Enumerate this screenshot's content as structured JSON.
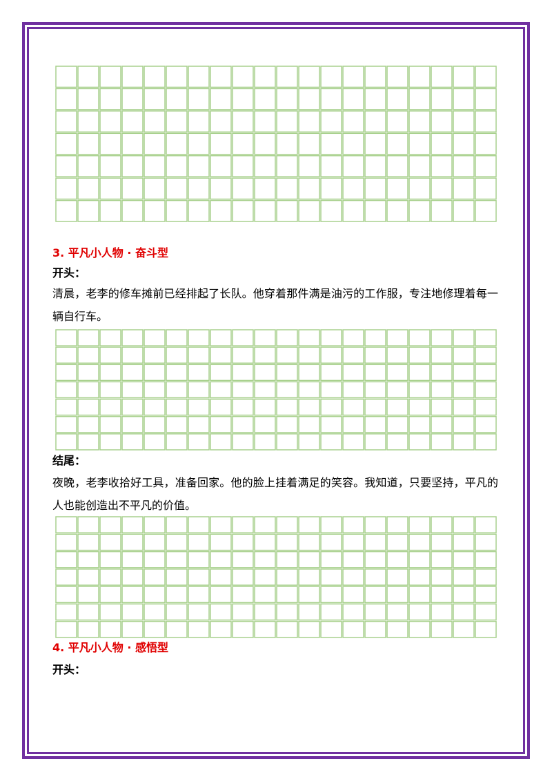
{
  "sections": [
    {
      "title": "3. 平凡小人物 · 奋斗型",
      "opening_label": "开头：",
      "opening_text": "清晨，老李的修车摊前已经排起了长队。他穿着那件满是油污的工作服，专注地修理着每一辆自行车。",
      "ending_label": "结尾：",
      "ending_text": "夜晚，老李收拾好工具，准备回家。他的脸上挂着满足的笑容。我知道，只要坚持，平凡的人也能创造出不平凡的价值。"
    },
    {
      "title": "4. 平凡小人物 · 感悟型",
      "opening_label": "开头："
    }
  ]
}
